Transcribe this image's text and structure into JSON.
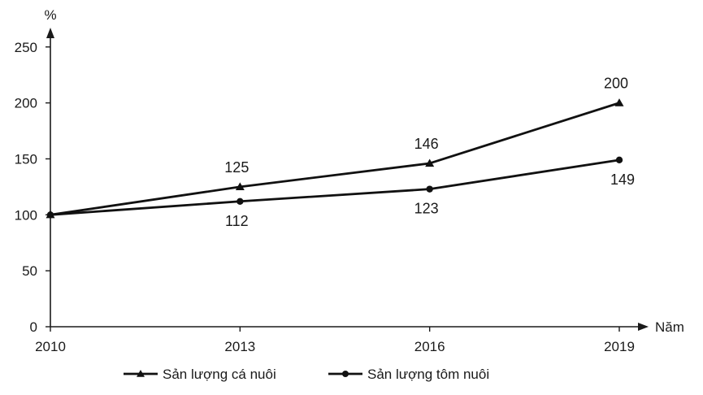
{
  "chart_data": {
    "type": "line",
    "title": "",
    "ylabel": "%",
    "xlabel": "Năm",
    "categories": [
      "2010",
      "2013",
      "2016",
      "2019"
    ],
    "x_values": [
      2010,
      2013,
      2016,
      2019
    ],
    "y_ticks": [
      0,
      50,
      100,
      150,
      200,
      250
    ],
    "ylim": [
      0,
      260
    ],
    "grid": false,
    "legend_position": "bottom",
    "series": [
      {
        "name": "Sản lượng cá nuôi",
        "marker": "triangle",
        "values": [
          100,
          125,
          146,
          200
        ],
        "labels": [
          "",
          "125",
          "146",
          "200"
        ]
      },
      {
        "name": "Sản lượng tôm nuôi",
        "marker": "circle",
        "values": [
          100,
          112,
          123,
          149
        ],
        "labels": [
          "",
          "112",
          "123",
          "149"
        ]
      }
    ],
    "colors": {
      "line": "#111111",
      "axis": "#1a1a1a"
    }
  }
}
